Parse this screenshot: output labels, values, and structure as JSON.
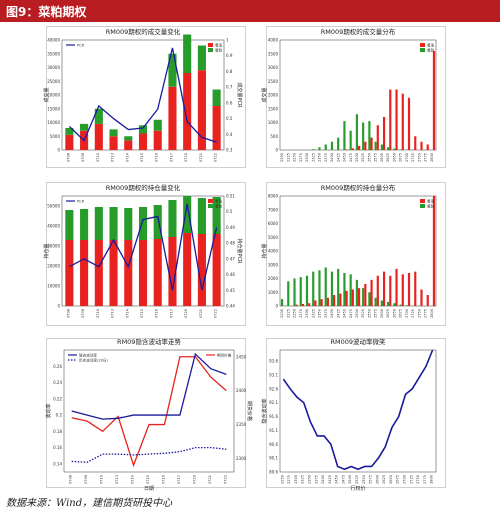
{
  "header": {
    "title": "图9：菜粕期权"
  },
  "footer": {
    "source": "数据来源：Wind，建信期货研投中心"
  },
  "colors": {
    "call": "#e8231f",
    "put": "#279c2a",
    "line": "#1a1a9c",
    "brown": "#8a5a2b",
    "header": "#b81d22"
  },
  "chart_data": [
    {
      "id": "volume-change",
      "type": "bar",
      "title": "RM009期权的成交量变化",
      "ylabel": "成交量",
      "y2label": "成交量PCR",
      "categories": [
        "0708",
        "0709",
        "0710",
        "0713",
        "0714",
        "0715",
        "0716",
        "0717",
        "0720",
        "0721",
        "0722"
      ],
      "series": [
        {
          "name": "看涨",
          "role": "call",
          "values": [
            5500,
            7000,
            9500,
            5000,
            3500,
            6000,
            7000,
            23000,
            28000,
            29000,
            16000
          ]
        },
        {
          "name": "看跌",
          "role": "put",
          "values": [
            2500,
            2500,
            5500,
            2500,
            1500,
            3000,
            4000,
            12000,
            14000,
            9000,
            6000
          ]
        },
        {
          "name": "PCR",
          "role": "line",
          "values": [
            0.45,
            0.36,
            0.58,
            0.5,
            0.43,
            0.44,
            0.56,
            0.95,
            0.48,
            0.38,
            0.35
          ]
        }
      ],
      "ylim": [
        0,
        40000
      ],
      "y2lim": [
        0.3,
        1.0
      ],
      "yticks": [
        0,
        5000,
        10000,
        15000,
        20000,
        25000,
        30000,
        35000,
        40000
      ],
      "y2ticks": [
        0.3,
        0.4,
        0.5,
        0.6,
        0.7,
        0.8,
        0.9,
        1.0
      ]
    },
    {
      "id": "volume-dist",
      "type": "bar",
      "title": "RM009期权的成交量分布",
      "ylabel": "成交量",
      "categories": [
        "2200",
        "2225",
        "2250",
        "2275",
        "2300",
        "2325",
        "2350",
        "2375",
        "2400",
        "2425",
        "2450",
        "2475",
        "2500",
        "2525",
        "2550",
        "2575",
        "2600",
        "2625",
        "2650",
        "2675",
        "2700",
        "2725",
        "2750",
        "2775",
        "2800"
      ],
      "series": [
        {
          "name": "看涨",
          "role": "call",
          "values": [
            0,
            0,
            0,
            0,
            0,
            0,
            0,
            0,
            0,
            5,
            20,
            60,
            150,
            300,
            450,
            900,
            1200,
            2200,
            2200,
            2050,
            1900,
            500,
            300,
            200,
            3600
          ]
        },
        {
          "name": "看跌",
          "role": "put",
          "values": [
            0,
            0,
            0,
            0,
            10,
            30,
            100,
            200,
            300,
            450,
            1050,
            700,
            1300,
            1000,
            1050,
            300,
            200,
            100,
            50,
            20,
            10,
            5,
            0,
            0,
            0
          ]
        }
      ],
      "ylim": [
        0,
        4000
      ],
      "yticks": [
        0,
        500,
        1000,
        1500,
        2000,
        2500,
        3000,
        3500,
        4000
      ]
    },
    {
      "id": "oi-change",
      "type": "bar",
      "title": "RM009期权的持仓量变化",
      "ylabel": "持仓量",
      "y2label": "持仓量PCR",
      "categories": [
        "0708",
        "0709",
        "0710",
        "0713",
        "0714",
        "0715",
        "0716",
        "0717",
        "0720",
        "0721",
        "0722"
      ],
      "series": [
        {
          "name": "看涨",
          "role": "call",
          "values": [
            33000,
            33000,
            33000,
            33000,
            33000,
            33000,
            33500,
            34500,
            36500,
            36000,
            36000
          ]
        },
        {
          "name": "看跌",
          "role": "put",
          "values": [
            15000,
            15500,
            16500,
            16500,
            16000,
            16500,
            17000,
            18500,
            18500,
            18000,
            18500
          ]
        },
        {
          "name": "PCR",
          "role": "line",
          "values": [
            0.465,
            0.47,
            0.465,
            0.482,
            0.465,
            0.495,
            0.497,
            0.45,
            0.505,
            0.45,
            0.49
          ]
        }
      ],
      "ylim": [
        0,
        55000
      ],
      "y2lim": [
        0.44,
        0.51
      ],
      "yticks": [
        0,
        10000,
        20000,
        30000,
        40000,
        50000
      ],
      "y2ticks": [
        0.44,
        0.45,
        0.46,
        0.47,
        0.48,
        0.49,
        0.5,
        0.51
      ]
    },
    {
      "id": "oi-dist",
      "type": "bar",
      "title": "RM009期权的持仓量分布",
      "ylabel": "持仓量",
      "categories": [
        "2200",
        "2225",
        "2250",
        "2275",
        "2300",
        "2325",
        "2350",
        "2375",
        "2400",
        "2425",
        "2450",
        "2475",
        "2500",
        "2525",
        "2550",
        "2575",
        "2600",
        "2625",
        "2650",
        "2675",
        "2700",
        "2725",
        "2750",
        "2775",
        "2800"
      ],
      "series": [
        {
          "name": "看涨",
          "role": "call",
          "values": [
            0,
            0,
            100,
            150,
            200,
            400,
            500,
            600,
            800,
            900,
            1100,
            1200,
            1300,
            1600,
            1900,
            2200,
            2500,
            2200,
            2700,
            2300,
            2400,
            2500,
            1200,
            800,
            8000
          ]
        },
        {
          "name": "看跌",
          "role": "put",
          "values": [
            500,
            1800,
            2000,
            2100,
            2200,
            2500,
            2600,
            2800,
            2500,
            2700,
            2400,
            2300,
            1900,
            1300,
            1000,
            600,
            400,
            300,
            200,
            100,
            50,
            0,
            0,
            0,
            0
          ]
        }
      ],
      "ylim": [
        0,
        8000
      ],
      "yticks": [
        0,
        1000,
        2000,
        3000,
        4000,
        5000,
        6000,
        7000,
        8000
      ]
    },
    {
      "id": "iv-trend",
      "type": "line",
      "title": "RM09隐含波动率走势",
      "xlabel": "日期",
      "ylabel": "波动率",
      "y2label": "期货价格",
      "categories": [
        "0708",
        "0709",
        "0710",
        "0713",
        "0714",
        "0715",
        "0716",
        "0717",
        "0720",
        "0721",
        "0722"
      ],
      "series": [
        {
          "name": "隐含波动率",
          "role": "line",
          "values": [
            0.205,
            0.2,
            0.195,
            0.196,
            0.2,
            0.2,
            0.2,
            0.2,
            0.275,
            0.257,
            0.25
          ]
        },
        {
          "name": "历史波动率(20日)",
          "role": "dotted",
          "values": [
            0.143,
            0.142,
            0.152,
            0.152,
            0.151,
            0.152,
            0.153,
            0.155,
            0.16,
            0.16,
            0.158
          ]
        },
        {
          "name": "期货价格",
          "role": "price",
          "values": [
            2360,
            2355,
            2340,
            2362,
            2290,
            2350,
            2350,
            2450,
            2450,
            2420,
            2400
          ]
        }
      ],
      "ylim": [
        0.13,
        0.28
      ],
      "y2lim": [
        2280,
        2460
      ],
      "yticks": [
        0.14,
        0.16,
        0.18,
        0.2,
        0.22,
        0.24,
        0.26
      ],
      "y2ticks": [
        2300,
        2350,
        2400,
        2450
      ]
    },
    {
      "id": "iv-smile",
      "type": "line",
      "title": "RM009波动率微笑",
      "xlabel": "行权价",
      "ylabel": "隐含波动率",
      "categories": [
        "2250",
        "2275",
        "2300",
        "2325",
        "2350",
        "2375",
        "2400",
        "2425",
        "2450",
        "2475",
        "2500",
        "2525",
        "2550",
        "2575",
        "2600",
        "2625",
        "2650",
        "2675",
        "2700",
        "2725",
        "2750",
        "2775",
        "2800"
      ],
      "series": [
        {
          "name": "隐含波动率",
          "role": "line",
          "values": [
            92.95,
            92.6,
            92.3,
            92.1,
            91.4,
            90.9,
            90.9,
            90.6,
            89.8,
            89.7,
            89.8,
            89.7,
            89.8,
            89.8,
            90.1,
            90.5,
            91.2,
            91.6,
            92.4,
            92.6,
            93.0,
            93.4,
            94.0
          ]
        }
      ],
      "ylim": [
        89.6,
        94.0
      ],
      "yticks": [
        89.6,
        90.1,
        90.6,
        91.1,
        91.6,
        92.1,
        92.6,
        93.1,
        93.6
      ]
    }
  ]
}
